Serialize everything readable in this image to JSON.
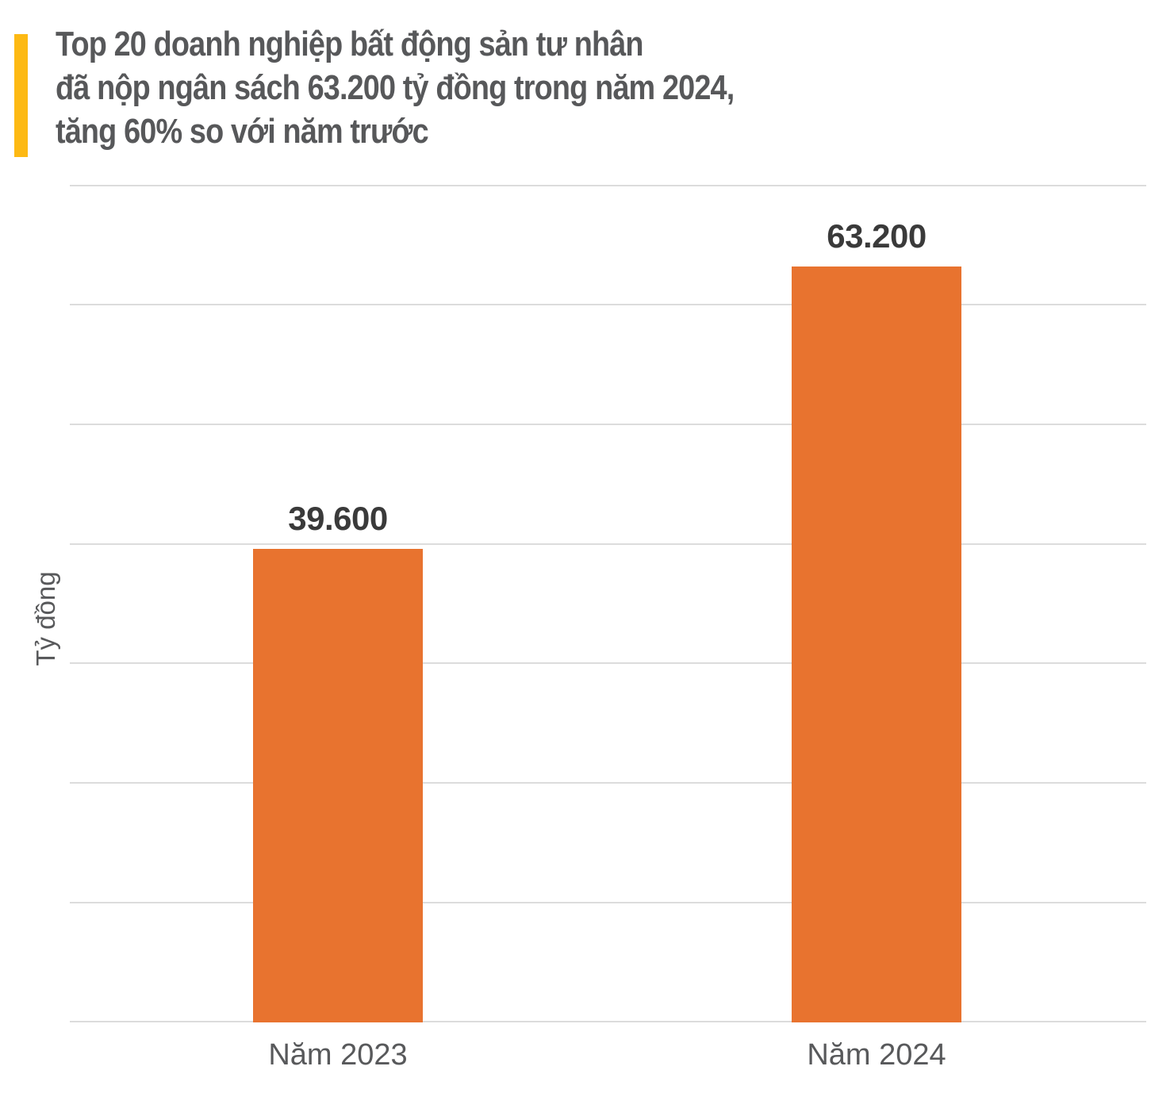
{
  "title": {
    "lines": [
      "Top 20 doanh nghiệp bất động sản tư nhân",
      "đã nộp ngân sách 63.200 tỷ  đồng trong năm 2024,",
      "tăng 60% so với năm trước"
    ],
    "accent_color": "#FDB913",
    "text_color": "#57585A"
  },
  "chart_data": {
    "type": "bar",
    "categories": [
      "Năm 2023",
      "Năm 2024"
    ],
    "values": [
      39600,
      63200
    ],
    "value_labels": [
      "39.600",
      "63.200"
    ],
    "title": "Top 20 doanh nghiệp bất động sản tư nhân đã nộp ngân sách 63.200 tỷ đồng trong năm 2024, tăng 60% so với năm trước",
    "xlabel": "",
    "ylabel": "Tỷ đồng",
    "ylim": [
      0,
      70000
    ],
    "gridline_step": 10000,
    "grid": true,
    "legend": false,
    "bar_color": "#E8732F",
    "gridline_color": "#DCDCDC"
  }
}
